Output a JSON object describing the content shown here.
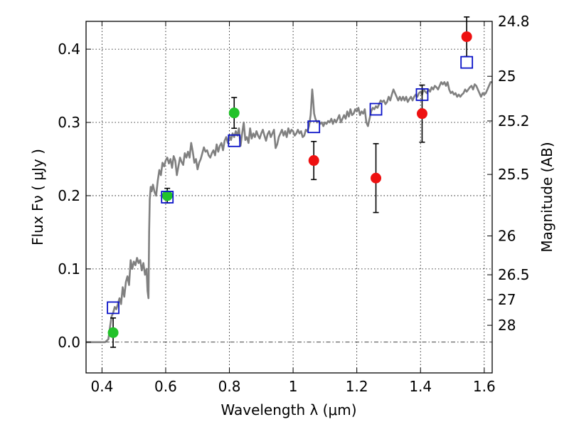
{
  "chart_data": {
    "type": "scatter",
    "xlabel": "Wavelength  λ (μm)",
    "ylabel": "Flux  Fν  ( μJy )",
    "ylabel_right": "Magnitude (AB)",
    "xlim": [
      0.35,
      1.625
    ],
    "ylim": [
      -0.042,
      0.438
    ],
    "x_ticks": [
      0.4,
      0.6,
      0.8,
      1.0,
      1.2,
      1.4,
      1.6
    ],
    "x_tick_labels": [
      "0.4",
      "0.6",
      "0.8",
      "1",
      "1.2",
      "1.4",
      "1.6"
    ],
    "y_ticks": [
      0.0,
      0.1,
      0.2,
      0.3,
      0.4
    ],
    "y_tick_labels": [
      "0.0",
      "0.1",
      "0.2",
      "0.3",
      "0.4"
    ],
    "right_ticks": [
      {
        "label": "24.8",
        "flux": 0.438
      },
      {
        "label": "25",
        "flux": 0.363
      },
      {
        "label": "25.2",
        "flux": 0.302
      },
      {
        "label": "25.5",
        "flux": 0.229
      },
      {
        "label": "26",
        "flux": 0.145
      },
      {
        "label": "26.5",
        "flux": 0.092
      },
      {
        "label": "27",
        "flux": 0.058
      },
      {
        "label": "28",
        "flux": 0.023
      }
    ],
    "grid": true,
    "colors": {
      "model": "#808080",
      "optical": "#22c22a",
      "nir": "#ee1111",
      "synthetic": "#0a12c8",
      "errorbar": "#000000"
    },
    "series": [
      {
        "kind": "line",
        "points": [
          [
            0.35,
            0.0
          ],
          [
            0.37,
            0.0
          ],
          [
            0.39,
            0.0
          ],
          [
            0.41,
            0.0
          ],
          [
            0.42,
            0.004
          ],
          [
            0.425,
            0.02
          ],
          [
            0.43,
            0.035
          ],
          [
            0.435,
            0.04
          ],
          [
            0.44,
            0.048
          ],
          [
            0.445,
            0.045
          ],
          [
            0.45,
            0.052
          ],
          [
            0.455,
            0.06
          ],
          [
            0.46,
            0.052
          ],
          [
            0.465,
            0.075
          ],
          [
            0.47,
            0.062
          ],
          [
            0.475,
            0.082
          ],
          [
            0.48,
            0.09
          ],
          [
            0.485,
            0.078
          ],
          [
            0.49,
            0.112
          ],
          [
            0.495,
            0.1
          ],
          [
            0.5,
            0.11
          ],
          [
            0.505,
            0.105
          ],
          [
            0.51,
            0.115
          ],
          [
            0.515,
            0.108
          ],
          [
            0.52,
            0.112
          ],
          [
            0.525,
            0.098
          ],
          [
            0.53,
            0.108
          ],
          [
            0.535,
            0.092
          ],
          [
            0.54,
            0.1
          ],
          [
            0.543,
            0.07
          ],
          [
            0.546,
            0.06
          ],
          [
            0.548,
            0.15
          ],
          [
            0.55,
            0.195
          ],
          [
            0.553,
            0.212
          ],
          [
            0.556,
            0.206
          ],
          [
            0.56,
            0.215
          ],
          [
            0.565,
            0.205
          ],
          [
            0.57,
            0.2
          ],
          [
            0.575,
            0.22
          ],
          [
            0.58,
            0.235
          ],
          [
            0.585,
            0.228
          ],
          [
            0.59,
            0.245
          ],
          [
            0.595,
            0.24
          ],
          [
            0.6,
            0.248
          ],
          [
            0.605,
            0.252
          ],
          [
            0.61,
            0.244
          ],
          [
            0.615,
            0.25
          ],
          [
            0.62,
            0.238
          ],
          [
            0.625,
            0.254
          ],
          [
            0.63,
            0.248
          ],
          [
            0.635,
            0.228
          ],
          [
            0.64,
            0.24
          ],
          [
            0.645,
            0.252
          ],
          [
            0.65,
            0.246
          ],
          [
            0.655,
            0.242
          ],
          [
            0.66,
            0.258
          ],
          [
            0.665,
            0.252
          ],
          [
            0.67,
            0.26
          ],
          [
            0.675,
            0.252
          ],
          [
            0.68,
            0.272
          ],
          [
            0.685,
            0.26
          ],
          [
            0.69,
            0.245
          ],
          [
            0.695,
            0.25
          ],
          [
            0.7,
            0.236
          ],
          [
            0.705,
            0.245
          ],
          [
            0.71,
            0.25
          ],
          [
            0.715,
            0.258
          ],
          [
            0.72,
            0.266
          ],
          [
            0.725,
            0.26
          ],
          [
            0.73,
            0.262
          ],
          [
            0.735,
            0.255
          ],
          [
            0.74,
            0.252
          ],
          [
            0.745,
            0.258
          ],
          [
            0.75,
            0.262
          ],
          [
            0.755,
            0.255
          ],
          [
            0.76,
            0.27
          ],
          [
            0.765,
            0.26
          ],
          [
            0.77,
            0.268
          ],
          [
            0.775,
            0.272
          ],
          [
            0.78,
            0.262
          ],
          [
            0.785,
            0.275
          ],
          [
            0.79,
            0.28
          ],
          [
            0.795,
            0.272
          ],
          [
            0.8,
            0.282
          ],
          [
            0.805,
            0.276
          ],
          [
            0.81,
            0.285
          ],
          [
            0.815,
            0.28
          ],
          [
            0.82,
            0.288
          ],
          [
            0.825,
            0.282
          ],
          [
            0.83,
            0.292
          ],
          [
            0.835,
            0.268
          ],
          [
            0.84,
            0.285
          ],
          [
            0.845,
            0.3
          ],
          [
            0.85,
            0.276
          ],
          [
            0.855,
            0.28
          ],
          [
            0.86,
            0.272
          ],
          [
            0.865,
            0.292
          ],
          [
            0.87,
            0.278
          ],
          [
            0.875,
            0.285
          ],
          [
            0.88,
            0.28
          ],
          [
            0.885,
            0.288
          ],
          [
            0.89,
            0.282
          ],
          [
            0.895,
            0.278
          ],
          [
            0.9,
            0.285
          ],
          [
            0.905,
            0.29
          ],
          [
            0.91,
            0.282
          ],
          [
            0.915,
            0.275
          ],
          [
            0.92,
            0.284
          ],
          [
            0.925,
            0.288
          ],
          [
            0.93,
            0.28
          ],
          [
            0.935,
            0.285
          ],
          [
            0.94,
            0.29
          ],
          [
            0.945,
            0.265
          ],
          [
            0.95,
            0.27
          ],
          [
            0.955,
            0.28
          ],
          [
            0.96,
            0.285
          ],
          [
            0.965,
            0.29
          ],
          [
            0.97,
            0.282
          ],
          [
            0.975,
            0.288
          ],
          [
            0.98,
            0.28
          ],
          [
            0.985,
            0.292
          ],
          [
            0.99,
            0.285
          ],
          [
            0.995,
            0.29
          ],
          [
            1.0,
            0.288
          ],
          [
            1.005,
            0.282
          ],
          [
            1.01,
            0.285
          ],
          [
            1.015,
            0.29
          ],
          [
            1.02,
            0.285
          ],
          [
            1.025,
            0.288
          ],
          [
            1.03,
            0.28
          ],
          [
            1.035,
            0.282
          ],
          [
            1.04,
            0.29
          ],
          [
            1.045,
            0.288
          ],
          [
            1.05,
            0.295
          ],
          [
            1.055,
            0.31
          ],
          [
            1.06,
            0.345
          ],
          [
            1.063,
            0.33
          ],
          [
            1.066,
            0.312
          ],
          [
            1.07,
            0.305
          ],
          [
            1.075,
            0.3
          ],
          [
            1.08,
            0.302
          ],
          [
            1.085,
            0.298
          ],
          [
            1.09,
            0.3
          ],
          [
            1.095,
            0.295
          ],
          [
            1.1,
            0.3
          ],
          [
            1.105,
            0.298
          ],
          [
            1.11,
            0.302
          ],
          [
            1.115,
            0.3
          ],
          [
            1.12,
            0.305
          ],
          [
            1.125,
            0.298
          ],
          [
            1.13,
            0.304
          ],
          [
            1.135,
            0.3
          ],
          [
            1.14,
            0.305
          ],
          [
            1.145,
            0.31
          ],
          [
            1.15,
            0.3
          ],
          [
            1.155,
            0.305
          ],
          [
            1.16,
            0.31
          ],
          [
            1.165,
            0.305
          ],
          [
            1.17,
            0.315
          ],
          [
            1.175,
            0.308
          ],
          [
            1.18,
            0.318
          ],
          [
            1.185,
            0.31
          ],
          [
            1.19,
            0.312
          ],
          [
            1.195,
            0.318
          ],
          [
            1.2,
            0.315
          ],
          [
            1.205,
            0.32
          ],
          [
            1.21,
            0.31
          ],
          [
            1.215,
            0.315
          ],
          [
            1.22,
            0.312
          ],
          [
            1.225,
            0.318
          ],
          [
            1.23,
            0.3
          ],
          [
            1.235,
            0.295
          ],
          [
            1.24,
            0.305
          ],
          [
            1.245,
            0.315
          ],
          [
            1.25,
            0.32
          ],
          [
            1.255,
            0.318
          ],
          [
            1.26,
            0.322
          ],
          [
            1.265,
            0.32
          ],
          [
            1.27,
            0.325
          ],
          [
            1.275,
            0.33
          ],
          [
            1.28,
            0.328
          ],
          [
            1.285,
            0.33
          ],
          [
            1.29,
            0.325
          ],
          [
            1.295,
            0.328
          ],
          [
            1.3,
            0.335
          ],
          [
            1.305,
            0.33
          ],
          [
            1.31,
            0.338
          ],
          [
            1.315,
            0.345
          ],
          [
            1.32,
            0.34
          ],
          [
            1.325,
            0.335
          ],
          [
            1.33,
            0.33
          ],
          [
            1.335,
            0.335
          ],
          [
            1.34,
            0.33
          ],
          [
            1.345,
            0.335
          ],
          [
            1.35,
            0.33
          ],
          [
            1.355,
            0.335
          ],
          [
            1.36,
            0.328
          ],
          [
            1.365,
            0.332
          ],
          [
            1.37,
            0.335
          ],
          [
            1.375,
            0.33
          ],
          [
            1.38,
            0.335
          ],
          [
            1.385,
            0.338
          ],
          [
            1.39,
            0.335
          ],
          [
            1.395,
            0.34
          ],
          [
            1.4,
            0.342
          ],
          [
            1.405,
            0.338
          ],
          [
            1.41,
            0.345
          ],
          [
            1.415,
            0.342
          ],
          [
            1.42,
            0.34
          ],
          [
            1.425,
            0.345
          ],
          [
            1.43,
            0.342
          ],
          [
            1.435,
            0.348
          ],
          [
            1.44,
            0.345
          ],
          [
            1.445,
            0.35
          ],
          [
            1.45,
            0.348
          ],
          [
            1.455,
            0.345
          ],
          [
            1.46,
            0.35
          ],
          [
            1.465,
            0.355
          ],
          [
            1.47,
            0.352
          ],
          [
            1.475,
            0.355
          ],
          [
            1.48,
            0.35
          ],
          [
            1.485,
            0.355
          ],
          [
            1.49,
            0.345
          ],
          [
            1.495,
            0.34
          ],
          [
            1.5,
            0.342
          ],
          [
            1.505,
            0.338
          ],
          [
            1.51,
            0.34
          ],
          [
            1.515,
            0.335
          ],
          [
            1.52,
            0.338
          ],
          [
            1.525,
            0.335
          ],
          [
            1.53,
            0.338
          ],
          [
            1.535,
            0.34
          ],
          [
            1.54,
            0.345
          ],
          [
            1.545,
            0.342
          ],
          [
            1.55,
            0.345
          ],
          [
            1.555,
            0.348
          ],
          [
            1.56,
            0.35
          ],
          [
            1.565,
            0.345
          ],
          [
            1.57,
            0.352
          ],
          [
            1.575,
            0.35
          ],
          [
            1.58,
            0.345
          ],
          [
            1.585,
            0.34
          ],
          [
            1.59,
            0.335
          ],
          [
            1.595,
            0.34
          ],
          [
            1.6,
            0.338
          ],
          [
            1.605,
            0.34
          ],
          [
            1.61,
            0.345
          ],
          [
            1.615,
            0.35
          ],
          [
            1.62,
            0.355
          ],
          [
            1.625,
            0.355
          ]
        ]
      },
      {
        "kind": "points",
        "marker": "circle",
        "color_key": "optical",
        "points": [
          {
            "x": 0.435,
            "y": 0.013,
            "err": 0.02
          },
          {
            "x": 0.605,
            "y": 0.2,
            "err": 0.01
          },
          {
            "x": 0.815,
            "y": 0.313,
            "err": 0.021
          }
        ]
      },
      {
        "kind": "points",
        "marker": "circle",
        "color_key": "nir",
        "points": [
          {
            "x": 1.065,
            "y": 0.248,
            "err": 0.026
          },
          {
            "x": 1.26,
            "y": 0.224,
            "err": 0.047
          },
          {
            "x": 1.405,
            "y": 0.312,
            "err": 0.039
          },
          {
            "x": 1.545,
            "y": 0.417,
            "err": 0.027
          }
        ]
      },
      {
        "kind": "points",
        "marker": "square",
        "color_key": "synthetic",
        "points": [
          {
            "x": 0.435,
            "y": 0.047
          },
          {
            "x": 0.605,
            "y": 0.198
          },
          {
            "x": 0.815,
            "y": 0.275
          },
          {
            "x": 1.065,
            "y": 0.294
          },
          {
            "x": 1.26,
            "y": 0.318
          },
          {
            "x": 1.405,
            "y": 0.338
          },
          {
            "x": 1.545,
            "y": 0.382
          }
        ]
      }
    ]
  }
}
